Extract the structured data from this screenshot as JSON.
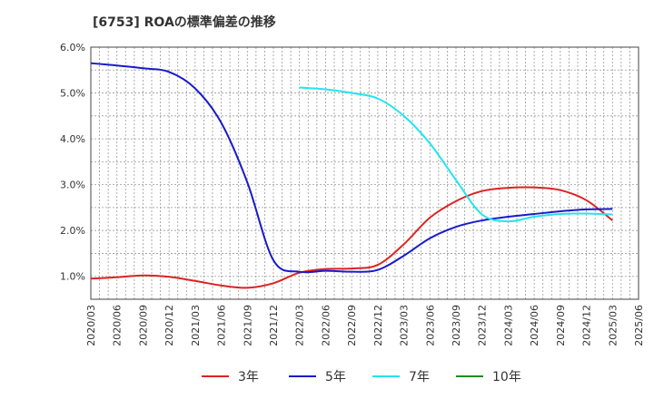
{
  "chart_data": {
    "type": "line",
    "title": "[6753]  ROAの標準偏差の推移",
    "xlabel": "",
    "ylabel": "",
    "ylim": [
      0.5,
      6.0
    ],
    "yticks": [
      1.0,
      2.0,
      3.0,
      4.0,
      5.0,
      6.0
    ],
    "ytick_labels": [
      "1.0%",
      "2.0%",
      "3.0%",
      "4.0%",
      "5.0%",
      "6.0%"
    ],
    "x_ticks": [
      "2020/03",
      "2020/06",
      "2020/09",
      "2020/12",
      "2021/03",
      "2021/06",
      "2021/09",
      "2021/12",
      "2022/03",
      "2022/06",
      "2022/09",
      "2022/12",
      "2023/03",
      "2023/06",
      "2023/09",
      "2023/12",
      "2024/03",
      "2024/06",
      "2024/09",
      "2024/12",
      "2025/03",
      "2025/06"
    ],
    "grid": true,
    "legend_position": "bottom",
    "series": [
      {
        "name": "3年",
        "color": "#dd2222",
        "x": [
          "2020/03",
          "2020/06",
          "2020/09",
          "2020/12",
          "2021/03",
          "2021/06",
          "2021/09",
          "2021/12",
          "2022/03",
          "2022/06",
          "2022/09",
          "2022/12",
          "2023/03",
          "2023/06",
          "2023/09",
          "2023/12",
          "2024/03",
          "2024/06",
          "2024/09",
          "2024/12",
          "2025/03"
        ],
        "values": [
          0.95,
          0.98,
          1.02,
          0.99,
          0.9,
          0.8,
          0.75,
          0.85,
          1.08,
          1.16,
          1.17,
          1.25,
          1.7,
          2.28,
          2.64,
          2.86,
          2.93,
          2.94,
          2.88,
          2.66,
          2.22
        ]
      },
      {
        "name": "5年",
        "color": "#1a1acc",
        "x": [
          "2020/03",
          "2020/06",
          "2020/09",
          "2020/12",
          "2021/03",
          "2021/06",
          "2021/09",
          "2021/12",
          "2022/03",
          "2022/06",
          "2022/09",
          "2022/12",
          "2023/03",
          "2023/06",
          "2023/09",
          "2023/12",
          "2024/03",
          "2024/06",
          "2024/09",
          "2024/12",
          "2025/03"
        ],
        "values": [
          5.65,
          5.6,
          5.54,
          5.46,
          5.1,
          4.35,
          3.05,
          1.35,
          1.1,
          1.12,
          1.1,
          1.14,
          1.45,
          1.83,
          2.08,
          2.22,
          2.3,
          2.36,
          2.42,
          2.46,
          2.47
        ]
      },
      {
        "name": "7年",
        "color": "#22e5ee",
        "x": [
          "2022/03",
          "2022/06",
          "2022/09",
          "2022/12",
          "2023/03",
          "2023/06",
          "2023/09",
          "2023/12",
          "2024/03",
          "2024/06",
          "2024/09",
          "2024/12",
          "2025/03"
        ],
        "values": [
          5.12,
          5.08,
          5.0,
          4.88,
          4.5,
          3.9,
          3.1,
          2.35,
          2.2,
          2.3,
          2.36,
          2.37,
          2.35
        ]
      },
      {
        "name": "10年",
        "color": "#1e8c1e",
        "x": [],
        "values": []
      }
    ]
  }
}
